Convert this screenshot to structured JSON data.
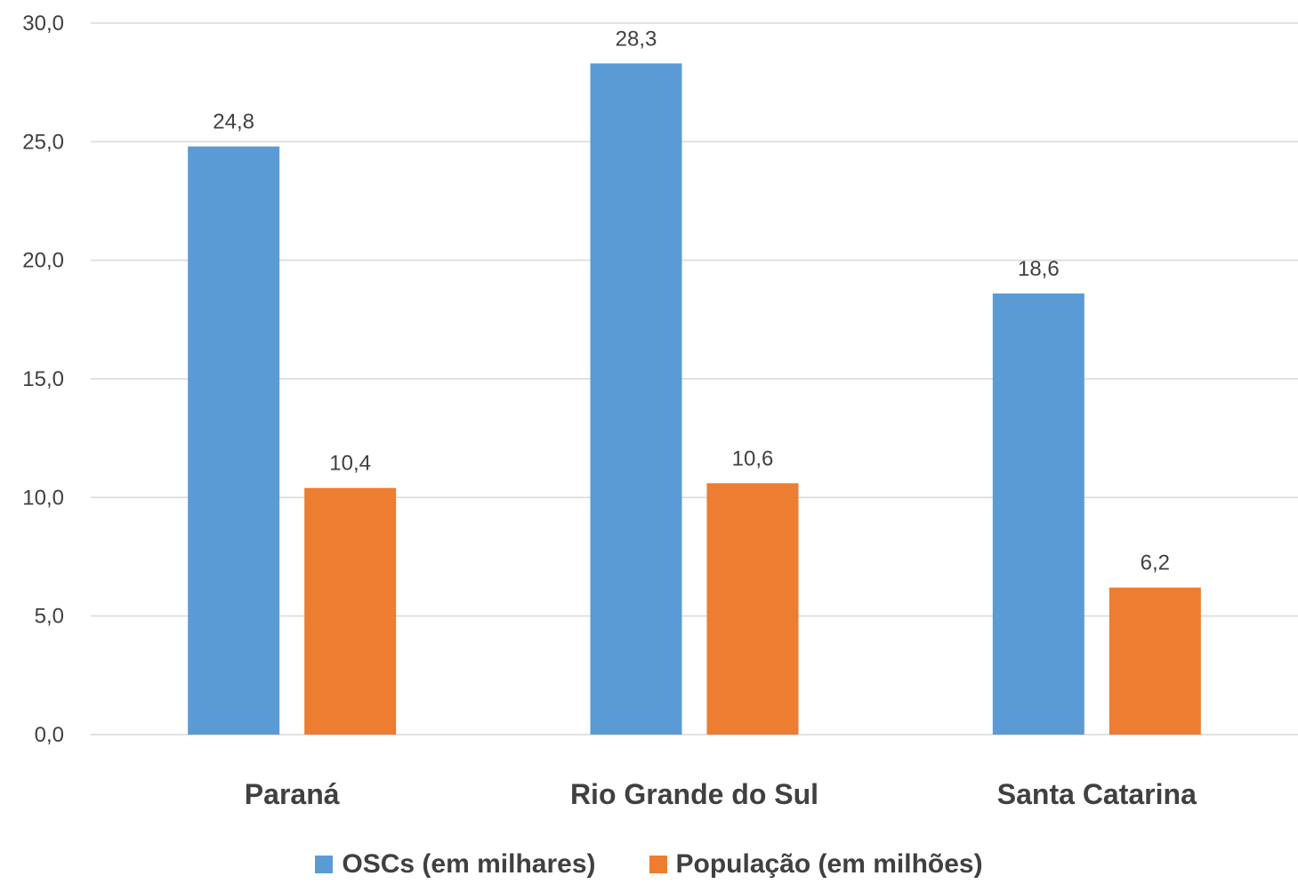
{
  "chart_data": {
    "type": "bar",
    "categories": [
      "Paraná",
      "Rio Grande do Sul",
      "Santa Catarina"
    ],
    "series": [
      {
        "name": "OSCs (em milhares)",
        "values": [
          24.8,
          28.3,
          18.6
        ],
        "labels": [
          "24,8",
          "28,3",
          "18,6"
        ],
        "color": "#5B9BD5"
      },
      {
        "name": "População (em milhões)",
        "values": [
          10.4,
          10.6,
          6.2
        ],
        "labels": [
          "10,4",
          "10,6",
          "6,2"
        ],
        "color": "#ED7D31"
      }
    ],
    "yticks": [
      0,
      5,
      10,
      15,
      20,
      25,
      30
    ],
    "ytick_labels": [
      "0,0",
      "5,0",
      "10,0",
      "15,0",
      "20,0",
      "25,0",
      "30,0"
    ],
    "ylim": [
      0,
      30
    ],
    "grid": true,
    "legend_position": "bottom"
  }
}
